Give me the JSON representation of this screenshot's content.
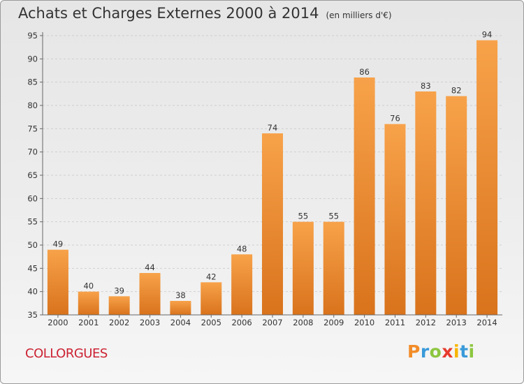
{
  "title": "Achats et Charges Externes 2000 à 2014",
  "subtitle": "(en milliers d'€)",
  "commune": "COLLORGUES",
  "logo": {
    "letters": [
      "P",
      "r",
      "o",
      "x",
      "i",
      "t",
      "i"
    ],
    "colors": [
      "#f28c28",
      "#3a9ad9",
      "#8cc63f",
      "#e63b2e",
      "#f7b500",
      "#3a9ad9",
      "#8cc63f"
    ]
  },
  "chart_data": {
    "type": "bar",
    "categories": [
      "2000",
      "2001",
      "2002",
      "2003",
      "2004",
      "2005",
      "2006",
      "2007",
      "2008",
      "2009",
      "2010",
      "2011",
      "2012",
      "2013",
      "2014"
    ],
    "values": [
      49,
      40,
      39,
      44,
      38,
      42,
      48,
      74,
      55,
      55,
      86,
      76,
      83,
      82,
      94
    ],
    "ylim": [
      35,
      95
    ],
    "yticks": [
      35,
      40,
      45,
      50,
      55,
      60,
      65,
      70,
      75,
      80,
      85,
      90,
      95
    ],
    "grid": true,
    "bar_color": "#f0922f"
  }
}
